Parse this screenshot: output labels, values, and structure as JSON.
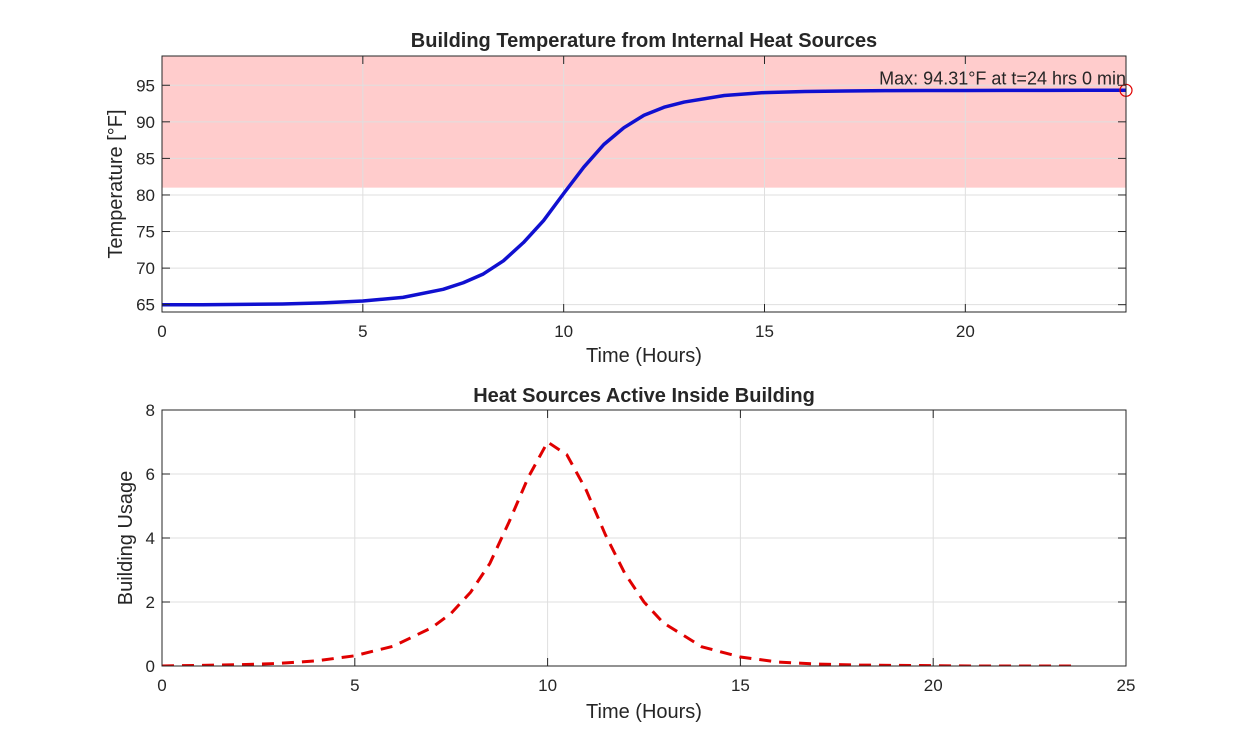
{
  "chart_data": [
    {
      "type": "line",
      "title": "Building Temperature from Internal Heat Sources",
      "xlabel": "Time (Hours)",
      "ylabel": "Temperature [°F]",
      "xlim": [
        0,
        24
      ],
      "ylim": [
        64,
        99
      ],
      "xticks": [
        0,
        5,
        10,
        15,
        20
      ],
      "yticks": [
        65,
        70,
        75,
        80,
        85,
        90,
        95
      ],
      "grid": true,
      "shaded_region": {
        "y_from": 81,
        "y_to": 99,
        "color": "#ffcccc"
      },
      "series": [
        {
          "color": "#1010d0",
          "style": "solid",
          "x": [
            0,
            1,
            2,
            3,
            4,
            5,
            6,
            7,
            7.5,
            8,
            8.5,
            9,
            9.5,
            10,
            10.5,
            11,
            11.5,
            12,
            12.5,
            13,
            14,
            15,
            16,
            17,
            18,
            19,
            20,
            21,
            22,
            23,
            24
          ],
          "y": [
            65.0,
            65.0,
            65.05,
            65.1,
            65.25,
            65.5,
            66.0,
            67.1,
            68.0,
            69.2,
            71.0,
            73.5,
            76.5,
            80.2,
            83.8,
            86.9,
            89.2,
            90.9,
            92.0,
            92.7,
            93.6,
            94.0,
            94.15,
            94.22,
            94.26,
            94.28,
            94.29,
            94.3,
            94.3,
            94.31,
            94.31
          ]
        }
      ],
      "max_marker": {
        "x": 24,
        "y": 94.31,
        "color": "#e00000",
        "label": "Max: 94.31°F at t=24 hrs 0 min"
      }
    },
    {
      "type": "line",
      "title": "Heat Sources Active Inside Building",
      "xlabel": "Time (Hours)",
      "ylabel": "Building Usage",
      "xlim": [
        0,
        25
      ],
      "ylim": [
        0,
        8
      ],
      "xticks": [
        0,
        5,
        10,
        15,
        20,
        25
      ],
      "yticks": [
        0,
        2,
        4,
        6,
        8
      ],
      "grid": true,
      "series": [
        {
          "color": "#e00000",
          "style": "dashed",
          "x": [
            0,
            1,
            2,
            3,
            4,
            5,
            6,
            7,
            7.5,
            8,
            8.5,
            9,
            9.5,
            10,
            10.5,
            11,
            11.5,
            12,
            12.5,
            13,
            14,
            15,
            16,
            17,
            18,
            19,
            20,
            21,
            22,
            23,
            23.7
          ],
          "y": [
            0.0,
            0.02,
            0.04,
            0.08,
            0.16,
            0.32,
            0.62,
            1.2,
            1.65,
            2.3,
            3.2,
            4.5,
            5.9,
            7.0,
            6.6,
            5.5,
            4.1,
            2.9,
            2.0,
            1.35,
            0.6,
            0.28,
            0.12,
            0.06,
            0.03,
            0.02,
            0.01,
            0.0,
            0.0,
            0.0,
            0.0
          ]
        }
      ]
    }
  ]
}
